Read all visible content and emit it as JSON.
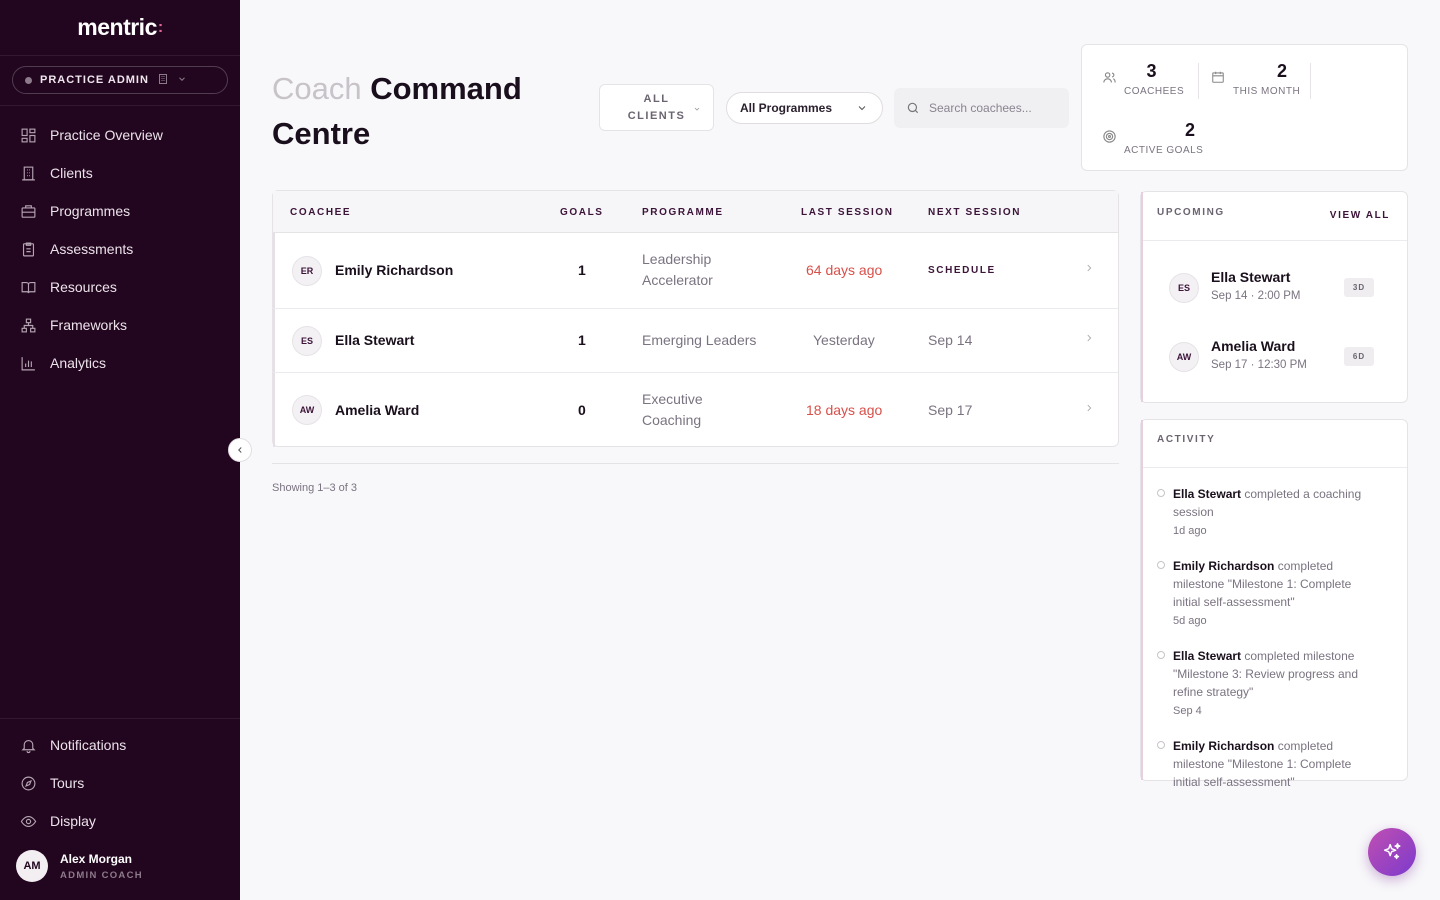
{
  "brand": {
    "name": "mentric",
    "mark": ":"
  },
  "role": {
    "label": "PRACTICE ADMIN"
  },
  "nav": {
    "items": [
      {
        "label": "Practice Overview",
        "icon": "grid-icon"
      },
      {
        "label": "Clients",
        "icon": "building-icon"
      },
      {
        "label": "Programmes",
        "icon": "briefcase-icon"
      },
      {
        "label": "Assessments",
        "icon": "clipboard-icon"
      },
      {
        "label": "Resources",
        "icon": "book-icon"
      },
      {
        "label": "Frameworks",
        "icon": "hierarchy-icon"
      },
      {
        "label": "Analytics",
        "icon": "bar-chart-icon"
      }
    ],
    "bottom": [
      {
        "label": "Notifications",
        "icon": "bell-icon"
      },
      {
        "label": "Tours",
        "icon": "compass-icon"
      },
      {
        "label": "Display",
        "icon": "eye-icon"
      }
    ]
  },
  "user": {
    "initials": "AM",
    "name": "Alex Morgan",
    "role": "ADMIN COACH"
  },
  "header": {
    "title_light": "Coach",
    "title_bold_1": "Command",
    "title_bold_2": "Centre",
    "filter_clients_line1": "ALL",
    "filter_clients_line2": "CLIENTS",
    "filter_programme": "All Programmes",
    "search_placeholder": "Search coachees..."
  },
  "stats": {
    "coachees": {
      "value": "3",
      "label": "COACHEES"
    },
    "this_month": {
      "value": "2",
      "label": "THIS MONTH"
    },
    "active_goals": {
      "value": "2",
      "label": "ACTIVE GOALS"
    }
  },
  "table": {
    "headers": {
      "coachee": "COACHEE",
      "goals": "GOALS",
      "programme": "PROGRAMME",
      "last_session": "LAST SESSION",
      "next_session": "NEXT SESSION"
    },
    "rows": [
      {
        "initials": "ER",
        "name": "Emily Richardson",
        "goals": "1",
        "programme_1": "Leadership",
        "programme_2": "Accelerator",
        "last_session": "64 days ago",
        "last_status": "overdue",
        "next_session": "SCHEDULE"
      },
      {
        "initials": "ES",
        "name": "Ella Stewart",
        "goals": "1",
        "programme_1": "Emerging Leaders",
        "programme_2": "",
        "last_session": "Yesterday",
        "last_status": "ok",
        "next_session": "Sep 14"
      },
      {
        "initials": "AW",
        "name": "Amelia Ward",
        "goals": "0",
        "programme_1": "Executive",
        "programme_2": "Coaching",
        "last_session": "18 days ago",
        "last_status": "overdue",
        "next_session": "Sep 17"
      }
    ],
    "showing": "Showing 1–3 of 3"
  },
  "upcoming": {
    "title": "UPCOMING",
    "view_all": "VIEW ALL",
    "items": [
      {
        "initials": "ES",
        "name": "Ella Stewart",
        "time": "Sep 14 · 2:00 PM",
        "badge": "3D"
      },
      {
        "initials": "AW",
        "name": "Amelia Ward",
        "time": "Sep 17 · 12:30 PM",
        "badge": "6D"
      }
    ]
  },
  "activity": {
    "title": "ACTIVITY",
    "items": [
      {
        "who": "Ella Stewart",
        "what": "completed a coaching session",
        "when": "1d ago"
      },
      {
        "who": "Emily Richardson",
        "what": "completed milestone \"Milestone 1: Complete initial self-assessment\"",
        "when": "5d ago"
      },
      {
        "who": "Ella Stewart",
        "what": "completed milestone \"Milestone 3: Review progress and refine strategy\"",
        "when": "Sep 4"
      },
      {
        "who": "Emily Richardson",
        "what": "completed milestone \"Milestone 1: Complete initial self-assessment\"",
        "when": ""
      }
    ]
  },
  "colors": {
    "sidebar": "#22061f",
    "accent": "#3b1438",
    "overdue": "#d8504a",
    "fab_start": "#c14fb1",
    "fab_end": "#7c3acd"
  }
}
